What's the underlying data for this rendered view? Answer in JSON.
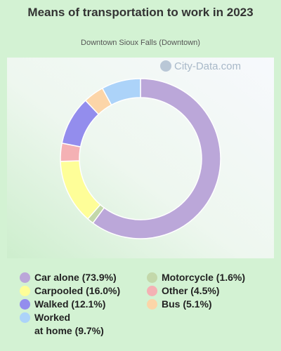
{
  "chart_data": {
    "type": "pie",
    "style": "donut",
    "title": "Means of transportation to work in 2023",
    "subtitle": "Downtown Sioux Falls (Downtown)",
    "slices": [
      {
        "label": "Car alone (73.9%)",
        "value": 73.9,
        "color": "#bba7d9"
      },
      {
        "label": "Motorcycle (1.6%)",
        "value": 1.6,
        "color": "#c3d8aa"
      },
      {
        "label": "Carpooled (16.0%)",
        "value": 16.0,
        "color": "#fefe98"
      },
      {
        "label": "Other (4.5%)",
        "value": 4.5,
        "color": "#f4b1b4"
      },
      {
        "label": "Walked (12.1%)",
        "value": 12.1,
        "color": "#938ded"
      },
      {
        "label": "Bus (5.1%)",
        "value": 5.1,
        "color": "#fcd5a8"
      },
      {
        "label": "Worked at home (9.7%)",
        "value": 9.7,
        "color": "#acd3f9"
      }
    ],
    "legend_placement": "bottom"
  },
  "watermark": {
    "text": "City-Data.com",
    "icon": "magnifier-icon"
  },
  "legend": {
    "car_alone": "Car alone (73.9%)",
    "carpooled": "Carpooled (16.0%)",
    "walked": "Walked (12.1%)",
    "worked_line1": "Worked",
    "worked_line2": "at home (9.7%)",
    "motorcycle": "Motorcycle (1.6%)",
    "other": "Other (4.5%)",
    "bus": "Bus (5.1%)"
  },
  "colors": {
    "car_alone": "#bba7d9",
    "carpooled": "#fefe98",
    "walked": "#938ded",
    "worked_at_home": "#acd3f9",
    "motorcycle": "#c3d8aa",
    "other": "#f4b1b4",
    "bus": "#fcd5a8"
  }
}
